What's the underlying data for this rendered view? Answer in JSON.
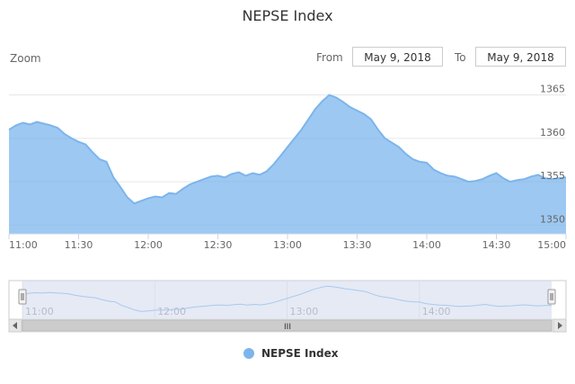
{
  "title": "NEPSE Index",
  "zoom_label": "Zoom",
  "range_selector": {
    "from_label": "From",
    "from_value": "May 9, 2018",
    "to_label": "To",
    "to_value": "May 9, 2018"
  },
  "colors": {
    "series": "#7cb5ec",
    "navigator_mask": "#cfd8ec",
    "grid": "#e6e6e6"
  },
  "navigator": {
    "ticks": [
      "11:00",
      "12:00",
      "13:00",
      "14:00"
    ],
    "scrollbar_grip": "III"
  },
  "chart_data": {
    "type": "area",
    "title": "NEPSE Index",
    "xlabel": "",
    "ylabel": "",
    "x_ticks": [
      "11:00",
      "11:30",
      "12:00",
      "12:30",
      "13:00",
      "13:30",
      "14:00",
      "14:30",
      "15:00"
    ],
    "y_ticks": [
      1350,
      1355,
      1360,
      1365
    ],
    "xlim": [
      "11:00",
      "15:00"
    ],
    "ylim": [
      1349,
      1366
    ],
    "grid": "horizontal",
    "legend": "bottom-center",
    "series": [
      {
        "name": "NEPSE Index",
        "x": [
          "11:00",
          "11:03",
          "11:06",
          "11:09",
          "11:12",
          "11:15",
          "11:18",
          "11:21",
          "11:24",
          "11:27",
          "11:30",
          "11:33",
          "11:36",
          "11:39",
          "11:42",
          "11:45",
          "11:48",
          "11:51",
          "11:54",
          "11:57",
          "12:00",
          "12:03",
          "12:06",
          "12:09",
          "12:12",
          "12:15",
          "12:18",
          "12:21",
          "12:24",
          "12:27",
          "12:30",
          "12:33",
          "12:36",
          "12:39",
          "12:42",
          "12:45",
          "12:48",
          "12:51",
          "12:54",
          "12:57",
          "13:00",
          "13:03",
          "13:06",
          "13:09",
          "13:12",
          "13:15",
          "13:18",
          "13:21",
          "13:24",
          "13:27",
          "13:30",
          "13:33",
          "13:36",
          "13:39",
          "13:42",
          "13:45",
          "13:48",
          "13:51",
          "13:54",
          "13:57",
          "14:00",
          "14:03",
          "14:06",
          "14:09",
          "14:12",
          "14:15",
          "14:18",
          "14:21",
          "14:24",
          "14:27",
          "14:30",
          "14:33",
          "14:36",
          "14:39",
          "14:42",
          "14:45",
          "14:48",
          "14:51",
          "14:54",
          "14:57",
          "15:00"
        ],
        "values": [
          1361.0,
          1361.5,
          1361.8,
          1361.6,
          1361.9,
          1361.7,
          1361.5,
          1361.2,
          1360.5,
          1360.0,
          1359.6,
          1359.3,
          1358.4,
          1357.6,
          1357.3,
          1355.5,
          1354.4,
          1353.2,
          1352.5,
          1352.8,
          1353.1,
          1353.3,
          1353.2,
          1353.7,
          1353.6,
          1354.2,
          1354.7,
          1355.0,
          1355.3,
          1355.6,
          1355.7,
          1355.5,
          1355.9,
          1356.1,
          1355.7,
          1356.0,
          1355.8,
          1356.2,
          1357.0,
          1358.0,
          1359.0,
          1360.0,
          1361.0,
          1362.2,
          1363.4,
          1364.3,
          1365.0,
          1364.7,
          1364.2,
          1363.6,
          1363.2,
          1362.8,
          1362.2,
          1361.0,
          1360.0,
          1359.5,
          1359.0,
          1358.2,
          1357.6,
          1357.3,
          1357.2,
          1356.4,
          1356.0,
          1355.7,
          1355.6,
          1355.3,
          1355.0,
          1355.1,
          1355.3,
          1355.7,
          1356.0,
          1355.4,
          1355.0,
          1355.2,
          1355.3,
          1355.6,
          1355.8,
          1355.4,
          1355.3,
          1355.4,
          1355.5
        ]
      }
    ]
  }
}
